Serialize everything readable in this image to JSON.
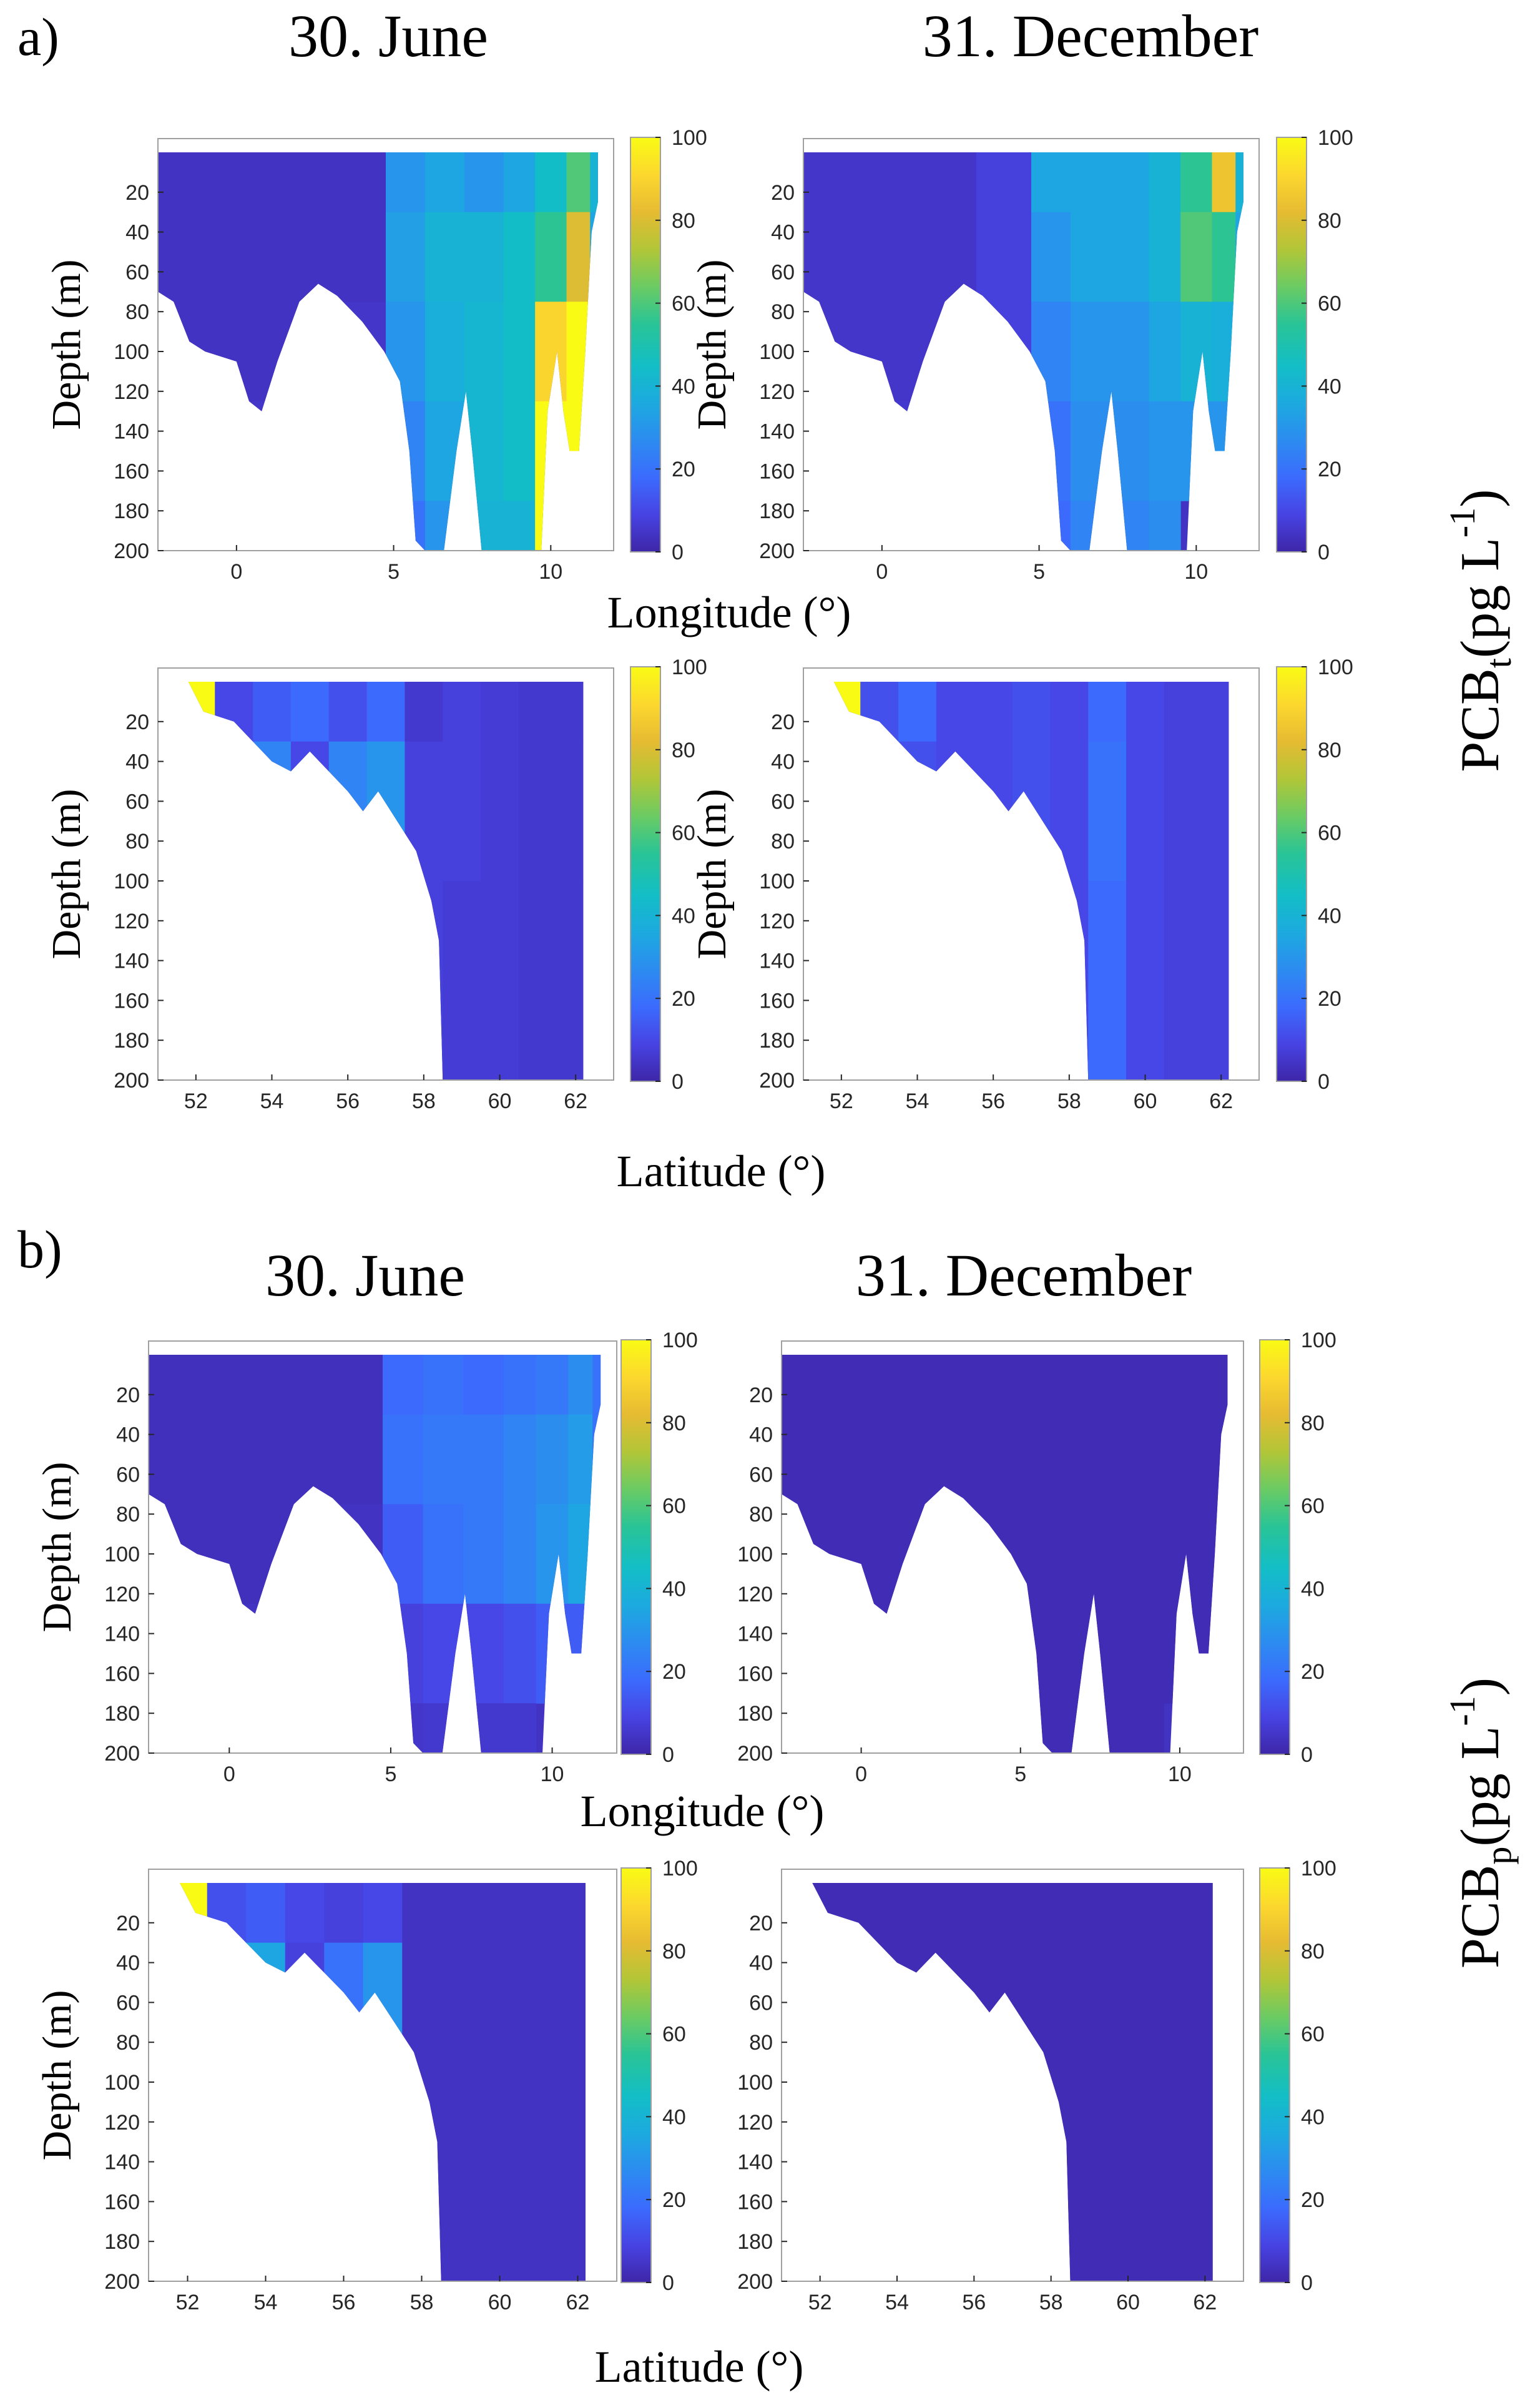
{
  "panel_letters": [
    "a)",
    "b)"
  ],
  "column_titles": [
    "30. June",
    "31. December"
  ],
  "side_labels": [
    {
      "base": "PCB",
      "sub": "t",
      "pre_sup": "(pg L",
      "sup": "-1",
      "post": ")"
    },
    {
      "base": "PCB",
      "sub": "p",
      "pre_sup": "(pg L",
      "sup": "-1",
      "post": ")"
    }
  ],
  "colors": {
    "colormap": [
      "#3e26a8",
      "#4743e3",
      "#3b6bfd",
      "#2c8cf0",
      "#1caadf",
      "#13bec6",
      "#29c496",
      "#6bcb63",
      "#b2c637",
      "#e6bb32",
      "#fcd82e",
      "#f9fb14"
    ],
    "frame": "#a0a0a0",
    "text": "#000000"
  },
  "chart_data": [
    {
      "id": "a-lon-jun",
      "type": "heatmap",
      "quantity": "PCBt",
      "date": "30. June",
      "section": "longitude",
      "xlabel": "Longitude (°)",
      "ylabel": "Depth (m)",
      "xlim": [
        -2.5,
        12
      ],
      "ylim": [
        200,
        0
      ],
      "xticks": [
        0,
        5,
        10
      ],
      "yticks": [
        20,
        40,
        60,
        80,
        100,
        120,
        140,
        160,
        180,
        200
      ],
      "clim": [
        0,
        100
      ],
      "cticks": [
        0,
        20,
        40,
        60,
        80,
        100
      ],
      "x": [
        -2.5,
        0,
        2,
        4,
        5.5,
        6.5,
        8,
        9,
        10,
        11,
        11.5
      ],
      "values": [
        [
          4,
          4,
          4,
          4,
          30,
          35,
          30,
          35,
          45,
          60,
          40
        ],
        [
          4,
          4,
          4,
          4,
          33,
          40,
          40,
          45,
          55,
          80,
          35
        ],
        [
          4,
          4,
          4,
          5,
          30,
          38,
          42,
          45,
          90,
          100,
          30
        ],
        [
          5,
          5,
          null,
          5,
          25,
          35,
          42,
          45,
          100,
          100,
          null
        ],
        [
          null,
          null,
          null,
          null,
          20,
          30,
          40,
          40,
          100,
          null,
          null
        ]
      ],
      "depths": [
        10,
        50,
        100,
        150,
        200
      ]
    },
    {
      "id": "a-lon-dec",
      "type": "heatmap",
      "quantity": "PCBt",
      "date": "31. December",
      "section": "longitude",
      "xlabel": "Longitude (°)",
      "ylabel": "Depth (m)",
      "xlim": [
        -2.5,
        12
      ],
      "ylim": [
        200,
        0
      ],
      "xticks": [
        0,
        5,
        10
      ],
      "yticks": [
        20,
        40,
        60,
        80,
        100,
        120,
        140,
        160,
        180,
        200
      ],
      "clim": [
        0,
        100
      ],
      "cticks": [
        0,
        20,
        40,
        60,
        80,
        100
      ],
      "x": [
        -2.5,
        0,
        2,
        4,
        5.5,
        6.5,
        8,
        9,
        10,
        11,
        11.5
      ],
      "values": [
        [
          5,
          5,
          5,
          8,
          35,
          35,
          35,
          40,
          55,
          85,
          40
        ],
        [
          5,
          5,
          5,
          8,
          30,
          35,
          35,
          40,
          60,
          55,
          35
        ],
        [
          5,
          5,
          5,
          8,
          25,
          30,
          30,
          35,
          40,
          38,
          30
        ],
        [
          6,
          6,
          null,
          8,
          20,
          28,
          28,
          30,
          30,
          30,
          null
        ],
        [
          null,
          null,
          null,
          null,
          18,
          25,
          25,
          28,
          null,
          null,
          null
        ]
      ],
      "depths": [
        10,
        50,
        100,
        150,
        200
      ]
    },
    {
      "id": "a-lat-jun",
      "type": "heatmap",
      "quantity": "PCBt",
      "date": "30. June",
      "section": "latitude",
      "xlabel": "Latitude (°)",
      "ylabel": "Depth (m)",
      "xlim": [
        51,
        63
      ],
      "ylim": [
        200,
        0
      ],
      "xticks": [
        52,
        54,
        56,
        58,
        60,
        62
      ],
      "yticks": [
        20,
        40,
        60,
        80,
        100,
        120,
        140,
        160,
        180,
        200
      ],
      "clim": [
        0,
        100
      ],
      "cticks": [
        0,
        20,
        40,
        60,
        80,
        100
      ],
      "x": [
        52,
        53,
        54,
        55,
        56,
        57,
        58,
        59,
        60,
        61,
        62
      ],
      "values": [
        [
          100,
          10,
          15,
          18,
          12,
          18,
          6,
          8,
          7,
          6,
          6
        ],
        [
          null,
          null,
          25,
          10,
          25,
          30,
          8,
          8,
          7,
          6,
          6
        ],
        [
          null,
          null,
          null,
          null,
          null,
          null,
          8,
          7,
          7,
          6,
          6
        ]
      ],
      "depths": [
        10,
        50,
        150
      ]
    },
    {
      "id": "a-lat-dec",
      "type": "heatmap",
      "quantity": "PCBt",
      "date": "31. December",
      "section": "latitude",
      "xlabel": "Latitude (°)",
      "ylabel": "Depth (m)",
      "xlim": [
        51,
        63
      ],
      "ylim": [
        200,
        0
      ],
      "xticks": [
        52,
        54,
        56,
        58,
        60,
        62
      ],
      "yticks": [
        20,
        40,
        60,
        80,
        100,
        120,
        140,
        160,
        180,
        200
      ],
      "clim": [
        0,
        100
      ],
      "cticks": [
        0,
        20,
        40,
        60,
        80,
        100
      ],
      "x": [
        52,
        53,
        54,
        55,
        56,
        57,
        58,
        59,
        60,
        61,
        62
      ],
      "values": [
        [
          100,
          12,
          18,
          10,
          10,
          12,
          10,
          18,
          10,
          8,
          8
        ],
        [
          null,
          null,
          12,
          10,
          10,
          12,
          10,
          20,
          10,
          8,
          8
        ],
        [
          null,
          null,
          null,
          null,
          null,
          null,
          10,
          18,
          10,
          8,
          8
        ]
      ],
      "depths": [
        10,
        50,
        150
      ]
    },
    {
      "id": "b-lon-jun",
      "type": "heatmap",
      "quantity": "PCBp",
      "date": "30. June",
      "section": "longitude",
      "xlabel": "Longitude (°)",
      "ylabel": "Depth (m)",
      "xlim": [
        -2.5,
        12
      ],
      "ylim": [
        200,
        0
      ],
      "xticks": [
        0,
        5,
        10
      ],
      "yticks": [
        20,
        40,
        60,
        80,
        100,
        120,
        140,
        160,
        180,
        200
      ],
      "clim": [
        0,
        100
      ],
      "cticks": [
        0,
        20,
        40,
        60,
        80,
        100
      ],
      "x": [
        -2.5,
        0,
        2,
        4,
        5.5,
        6.5,
        8,
        9,
        10,
        11,
        11.5
      ],
      "values": [
        [
          3,
          3,
          3,
          3,
          18,
          20,
          18,
          20,
          22,
          28,
          20
        ],
        [
          3,
          3,
          3,
          3,
          20,
          22,
          22,
          25,
          28,
          32,
          20
        ],
        [
          3,
          3,
          3,
          4,
          15,
          20,
          22,
          25,
          30,
          35,
          18
        ],
        [
          4,
          4,
          null,
          4,
          8,
          10,
          10,
          12,
          15,
          15,
          null
        ],
        [
          null,
          null,
          null,
          null,
          5,
          6,
          6,
          6,
          null,
          null,
          null
        ]
      ],
      "depths": [
        10,
        50,
        100,
        150,
        200
      ]
    },
    {
      "id": "b-lon-dec",
      "type": "heatmap",
      "quantity": "PCBp",
      "date": "31. December",
      "section": "longitude",
      "xlabel": "",
      "ylabel": "",
      "xlim": [
        -2.5,
        12
      ],
      "ylim": [
        200,
        0
      ],
      "xticks": [
        0,
        5,
        10
      ],
      "yticks": [
        20,
        40,
        60,
        80,
        100,
        120,
        140,
        160,
        180,
        200
      ],
      "clim": [
        0,
        100
      ],
      "cticks": [
        0,
        20,
        40,
        60,
        80,
        100
      ],
      "x": [
        -2.5,
        0,
        2,
        4,
        5.5,
        6.5,
        8,
        9,
        10,
        11,
        11.5
      ],
      "values": [
        [
          2,
          2,
          2,
          2,
          2,
          2,
          2,
          2,
          2,
          2,
          2
        ],
        [
          2,
          2,
          2,
          2,
          2,
          2,
          2,
          2,
          2,
          2,
          2
        ],
        [
          2,
          2,
          2,
          2,
          2,
          2,
          2,
          2,
          2,
          2,
          2
        ],
        [
          2,
          2,
          null,
          2,
          2,
          2,
          2,
          2,
          2,
          2,
          null
        ],
        [
          null,
          null,
          null,
          null,
          2,
          2,
          2,
          2,
          null,
          null,
          null
        ]
      ],
      "depths": [
        10,
        50,
        100,
        150,
        200
      ]
    },
    {
      "id": "b-lat-jun",
      "type": "heatmap",
      "quantity": "PCBp",
      "date": "30. June",
      "section": "latitude",
      "xlabel": "Latitude (°)",
      "ylabel": "Depth (m)",
      "xlim": [
        51,
        63
      ],
      "ylim": [
        200,
        0
      ],
      "xticks": [
        52,
        54,
        56,
        58,
        60,
        62
      ],
      "yticks": [
        20,
        40,
        60,
        80,
        100,
        120,
        140,
        160,
        180,
        200
      ],
      "clim": [
        0,
        100
      ],
      "cticks": [
        0,
        20,
        40,
        60,
        80,
        100
      ],
      "x": [
        52,
        53,
        54,
        55,
        56,
        57,
        58,
        59,
        60,
        61,
        62
      ],
      "values": [
        [
          100,
          12,
          15,
          10,
          8,
          10,
          4,
          4,
          4,
          4,
          4
        ],
        [
          null,
          null,
          35,
          8,
          20,
          30,
          4,
          4,
          4,
          4,
          4
        ],
        [
          null,
          null,
          null,
          null,
          null,
          null,
          4,
          4,
          4,
          4,
          4
        ]
      ],
      "depths": [
        10,
        50,
        150
      ]
    },
    {
      "id": "b-lat-dec",
      "type": "heatmap",
      "quantity": "PCBp",
      "date": "31. December",
      "section": "latitude",
      "xlabel": "",
      "ylabel": "",
      "xlim": [
        51,
        63
      ],
      "ylim": [
        200,
        0
      ],
      "xticks": [
        52,
        54,
        56,
        58,
        60,
        62
      ],
      "yticks": [
        20,
        40,
        60,
        80,
        100,
        120,
        140,
        160,
        180,
        200
      ],
      "clim": [
        0,
        100
      ],
      "cticks": [
        0,
        20,
        40,
        60,
        80,
        100
      ],
      "x": [
        52,
        53,
        54,
        55,
        56,
        57,
        58,
        59,
        60,
        61,
        62
      ],
      "values": [
        [
          2,
          2,
          2,
          2,
          2,
          2,
          2,
          2,
          2,
          2,
          2
        ],
        [
          null,
          null,
          2,
          2,
          2,
          2,
          2,
          2,
          2,
          2,
          2
        ],
        [
          null,
          null,
          null,
          null,
          null,
          null,
          2,
          2,
          2,
          2,
          2
        ]
      ],
      "depths": [
        10,
        50,
        150
      ]
    }
  ]
}
